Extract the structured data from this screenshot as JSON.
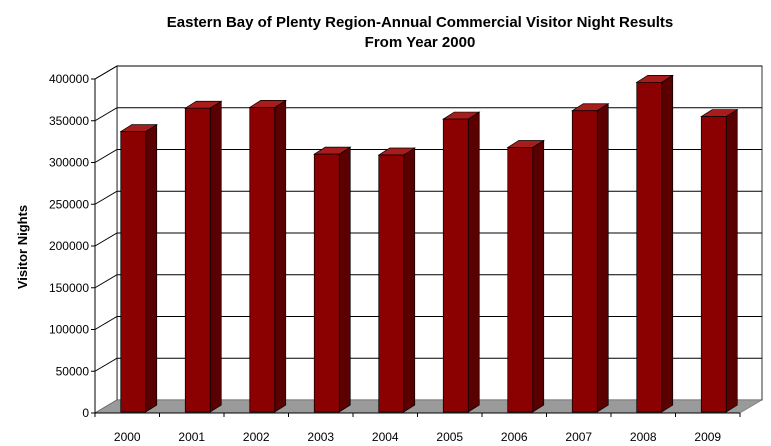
{
  "chart_data": {
    "type": "bar",
    "title": "Eastern Bay of Plenty Region-Annual Commercial Visitor Night Results",
    "subtitle": "From Year 2000",
    "xlabel": "",
    "ylabel": "Visitor Nights",
    "categories": [
      "2000",
      "2001",
      "2002",
      "2003",
      "2004",
      "2005",
      "2006",
      "2007",
      "2008",
      "2009"
    ],
    "values": [
      337000,
      365000,
      366000,
      310000,
      309000,
      352000,
      318000,
      362000,
      396000,
      355000
    ],
    "ylim": [
      0,
      400000
    ],
    "yticks": [
      "0",
      "50000",
      "100000",
      "150000",
      "200000",
      "250000",
      "300000",
      "350000",
      "400000"
    ],
    "grid": true,
    "legend": "none",
    "style": "3d-column",
    "colors": {
      "bar_front": "#8b0000",
      "bar_side": "#5a0000",
      "bar_top": "#a81c1c",
      "floor": "#9a9a9a",
      "grid": "#000000"
    }
  }
}
